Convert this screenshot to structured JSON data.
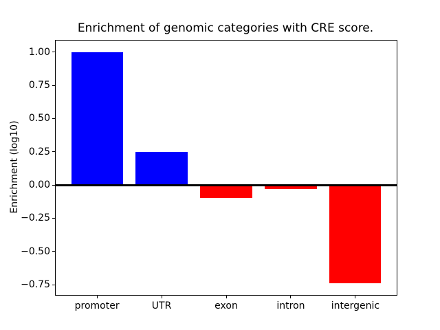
{
  "figure": {
    "background": "#ffffff"
  },
  "chart_data": {
    "type": "bar",
    "title": "Enrichment of genomic categories with CRE score.",
    "xlabel": "",
    "ylabel": "Enrichment (log10)",
    "categories": [
      "promoter",
      "UTR",
      "exon",
      "intron",
      "intergenic"
    ],
    "values": [
      1.0,
      0.25,
      -0.1,
      -0.03,
      -0.74
    ],
    "bar_colors": [
      "#0000ff",
      "#0000ff",
      "#ff0000",
      "#ff0000",
      "#ff0000"
    ],
    "positive_color": "#0000ff",
    "negative_color": "#ff0000",
    "bar_width": 0.8,
    "xlim": [
      -0.64,
      4.64
    ],
    "ylim": [
      -0.827,
      1.087
    ],
    "yticks": {
      "values": [
        1.0,
        0.75,
        0.5,
        0.25,
        0.0,
        -0.25,
        -0.5,
        -0.75
      ],
      "labels": [
        "1.00",
        "0.75",
        "0.50",
        "0.25",
        "0.00",
        "−0.25",
        "−0.50",
        "−0.75"
      ]
    },
    "zero_line": {
      "value": 0.0,
      "color": "#000000"
    },
    "grid": false,
    "legend": null,
    "axis_color": "#000000"
  }
}
